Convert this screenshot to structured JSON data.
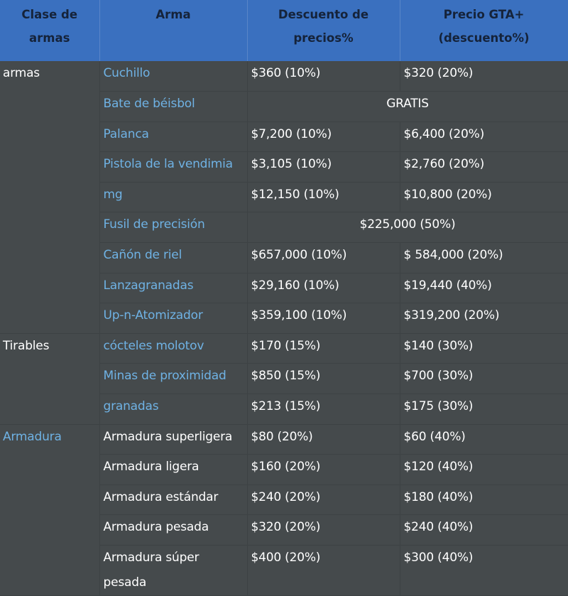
{
  "table": {
    "header": [
      "Clase de armas",
      "Arma",
      "Descuento de precios%",
      "Precio GTA+ (descuento%)"
    ],
    "groups": [
      {
        "label": "armas",
        "rows": [
          [
            "Cuchillo",
            "$360 (10%)",
            "$320 (20%)"
          ],
          [
            "Bate de béisbol",
            "GRATIS"
          ],
          [
            "Palanca",
            "$7,200 (10%)",
            "$6,400 (20%)"
          ],
          [
            "Pistola de la vendimia",
            "$3,105 (10%)",
            "$2,760 (20%)"
          ],
          [
            "mg",
            "$12,150 (10%)",
            "$10,800 (20%)"
          ],
          [
            "Fusil de precisión",
            "$225,000 (50%)"
          ],
          [
            "Cañón de riel",
            "$657,000 (10%)",
            "$ 584,000 (20%)"
          ],
          [
            "Lanzagranadas",
            "$29,160 (10%)",
            "$19,440 (40%)"
          ],
          [
            "Up-n-Atomizador",
            "$359,100 (10%)",
            "$319,200 (20%)"
          ]
        ]
      },
      {
        "label": "Tirables",
        "rows": [
          [
            "cócteles molotov",
            "$170 (15%)",
            "$140 (30%)"
          ],
          [
            "Minas de proximidad",
            "$850 (15%)",
            "$700 (30%)"
          ],
          [
            "granadas",
            "$213 (15%)",
            "$175 (30%)"
          ]
        ]
      },
      {
        "label": "Armadura",
        "rows": [
          [
            "Armadura superligera",
            "$80 (20%)",
            "$60 (40%)"
          ],
          [
            "Armadura ligera",
            "$160 (20%)",
            "$120 (40%)"
          ],
          [
            "Armadura estándar",
            "$240 (20%)",
            "$180 (40%)"
          ],
          [
            "Armadura pesada",
            "$320 (20%)",
            "$240 (40%)"
          ],
          [
            "Armadura súper pesada",
            "$400 (20%)",
            "$300 (40%)"
          ]
        ]
      }
    ]
  }
}
